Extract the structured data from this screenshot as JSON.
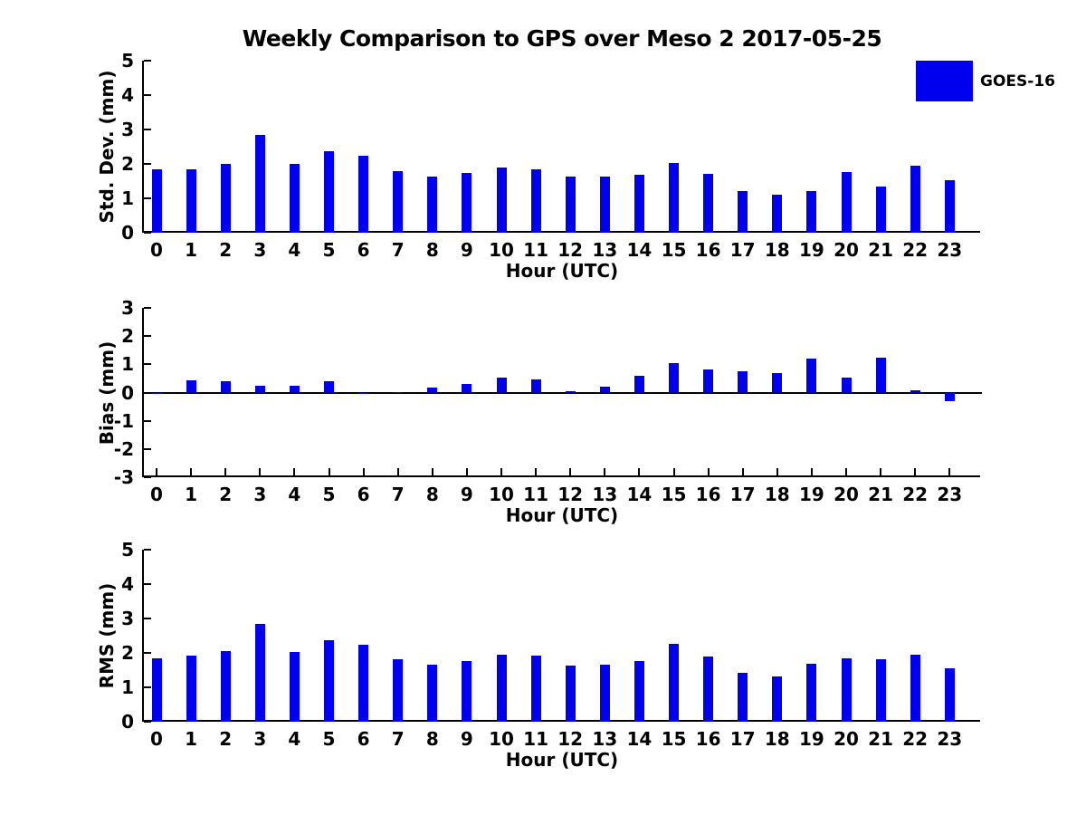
{
  "title": "Weekly Comparison to GPS over Meso 2 2017-05-25",
  "legend": {
    "label": "GOES-16",
    "color": "#0000ee",
    "position": "top-right"
  },
  "chart_data": [
    {
      "type": "bar",
      "panel": "std-dev",
      "ylabel": "Std. Dev. (mm)",
      "xlabel": "Hour (UTC)",
      "ylim": [
        0,
        5
      ],
      "yticks": [
        0,
        1,
        2,
        3,
        4,
        5
      ],
      "grid": "off",
      "categories": [
        "0",
        "1",
        "2",
        "3",
        "4",
        "5",
        "6",
        "7",
        "8",
        "9",
        "10",
        "11",
        "12",
        "13",
        "14",
        "15",
        "16",
        "17",
        "18",
        "19",
        "20",
        "21",
        "22",
        "23"
      ],
      "series": [
        {
          "name": "GOES-16",
          "color": "#0000ee",
          "values": [
            1.84,
            1.84,
            2.01,
            2.84,
            2.0,
            2.36,
            2.24,
            1.79,
            1.64,
            1.74,
            1.9,
            1.84,
            1.63,
            1.63,
            1.69,
            2.02,
            1.72,
            1.22,
            1.1,
            1.22,
            1.76,
            1.34,
            1.95,
            1.53
          ]
        }
      ]
    },
    {
      "type": "bar",
      "panel": "bias",
      "ylabel": "Bias (mm)",
      "xlabel": "Hour (UTC)",
      "ylim": [
        -3,
        3
      ],
      "yticks": [
        -3,
        -2,
        -1,
        0,
        1,
        2,
        3
      ],
      "grid": "off",
      "categories": [
        "0",
        "1",
        "2",
        "3",
        "4",
        "5",
        "6",
        "7",
        "8",
        "9",
        "10",
        "11",
        "12",
        "13",
        "14",
        "15",
        "16",
        "17",
        "18",
        "19",
        "20",
        "21",
        "22",
        "23"
      ],
      "series": [
        {
          "name": "GOES-16",
          "color": "#0000ee",
          "values": [
            -0.04,
            0.43,
            0.4,
            0.25,
            0.24,
            0.4,
            -0.05,
            0.01,
            0.18,
            0.3,
            0.52,
            0.48,
            0.05,
            0.22,
            0.6,
            1.05,
            0.82,
            0.76,
            0.7,
            1.2,
            0.52,
            1.22,
            0.07,
            -0.3
          ]
        }
      ]
    },
    {
      "type": "bar",
      "panel": "rms",
      "ylabel": "RMS (mm)",
      "xlabel": "Hour (UTC)",
      "ylim": [
        0,
        5
      ],
      "yticks": [
        0,
        1,
        2,
        3,
        4,
        5
      ],
      "grid": "off",
      "categories": [
        "0",
        "1",
        "2",
        "3",
        "4",
        "5",
        "6",
        "7",
        "8",
        "9",
        "10",
        "11",
        "12",
        "13",
        "14",
        "15",
        "16",
        "17",
        "18",
        "19",
        "20",
        "21",
        "22",
        "23"
      ],
      "series": [
        {
          "name": "GOES-16",
          "color": "#0000ee",
          "values": [
            1.84,
            1.92,
            2.05,
            2.85,
            2.03,
            2.38,
            2.24,
            1.81,
            1.66,
            1.76,
            1.96,
            1.91,
            1.62,
            1.65,
            1.76,
            2.27,
            1.89,
            1.42,
            1.31,
            1.68,
            1.83,
            1.81,
            1.95,
            1.54
          ]
        }
      ]
    }
  ]
}
